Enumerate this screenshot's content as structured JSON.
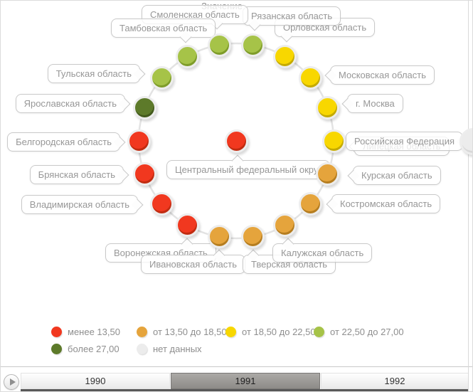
{
  "chart_data": {
    "type": "scatter",
    "layout": "circular-status-ring",
    "title": "",
    "legend_title": "Значение",
    "legend_position": "bottom",
    "classes": [
      "менее 13,50",
      "от 13,50 до 18,50",
      "от 18,50 до 22,50",
      "от 22,50 до 27,00",
      "более 27,00",
      "нет данных"
    ],
    "center_point": {
      "name": "Центральный федеральный округ",
      "class": "менее 13,50"
    },
    "outer_point": {
      "name": "Российская Федерация",
      "class": "нет данных"
    },
    "points": [
      {
        "name": "Липецкая область",
        "class": "от 18,50 до 22,50"
      },
      {
        "name": "г. Москва",
        "class": "от 18,50 до 22,50"
      },
      {
        "name": "Московская область",
        "class": "от 18,50 до 22,50"
      },
      {
        "name": "Орловская область",
        "class": "от 18,50 до 22,50"
      },
      {
        "name": "Рязанская область",
        "class": "от 22,50 до 27,00"
      },
      {
        "name": "Смоленская область",
        "class": "от 22,50 до 27,00"
      },
      {
        "name": "Тамбовская область",
        "class": "от 22,50 до 27,00"
      },
      {
        "name": "Тульская область",
        "class": "от 22,50 до 27,00"
      },
      {
        "name": "Ярославская область",
        "class": "более 27,00"
      },
      {
        "name": "Белгородская область",
        "class": "менее 13,50"
      },
      {
        "name": "Брянская область",
        "class": "менее 13,50"
      },
      {
        "name": "Владимирская область",
        "class": "менее 13,50"
      },
      {
        "name": "Воронежская область",
        "class": "менее 13,50"
      },
      {
        "name": "Ивановская область",
        "class": "от 13,50 до 18,50"
      },
      {
        "name": "Тверская область",
        "class": "от 13,50 до 18,50"
      },
      {
        "name": "Калужская область",
        "class": "от 13,50 до 18,50"
      },
      {
        "name": "Костромская область",
        "class": "от 13,50 до 18,50"
      },
      {
        "name": "Курская область",
        "class": "от 13,50 до 18,50"
      }
    ],
    "years": [
      "1990",
      "1991",
      "1992"
    ],
    "selected_year": "1991"
  },
  "palette": {
    "менее 13,50": {
      "color": "#f1381f",
      "dark": "#c02c11"
    },
    "от 13,50 до 18,50": {
      "color": "#e5a43c",
      "dark": "#b57d20"
    },
    "от 18,50 до 22,50": {
      "color": "#f8d700",
      "dark": "#c4aa00"
    },
    "от 22,50 до 27,00": {
      "color": "#a6c348",
      "dark": "#7e9c2a"
    },
    "более 27,00": {
      "color": "#5d7a2a",
      "dark": "#42591c"
    },
    "нет данных": {
      "color": "#ececec",
      "dark": "#d8d8d8"
    }
  },
  "legend": {
    "title": "Значение",
    "items": [
      {
        "label": "менее 13,50",
        "class": "менее 13,50"
      },
      {
        "label": "от 13,50 до 18,50",
        "class": "от 13,50 до 18,50"
      },
      {
        "label": "от 18,50 до 22,50",
        "class": "от 18,50 до 22,50"
      },
      {
        "label": "от 22,50 до 27,00",
        "class": "от 22,50 до 27,00"
      },
      {
        "label": "более 27,00",
        "class": "более 27,00"
      },
      {
        "label": "нет данных",
        "class": "нет данных"
      }
    ]
  },
  "timeline": {
    "play_icon": "play",
    "years": [
      {
        "label": "1990",
        "selected": false
      },
      {
        "label": "1991",
        "selected": true
      },
      {
        "label": "1992",
        "selected": false
      }
    ]
  }
}
